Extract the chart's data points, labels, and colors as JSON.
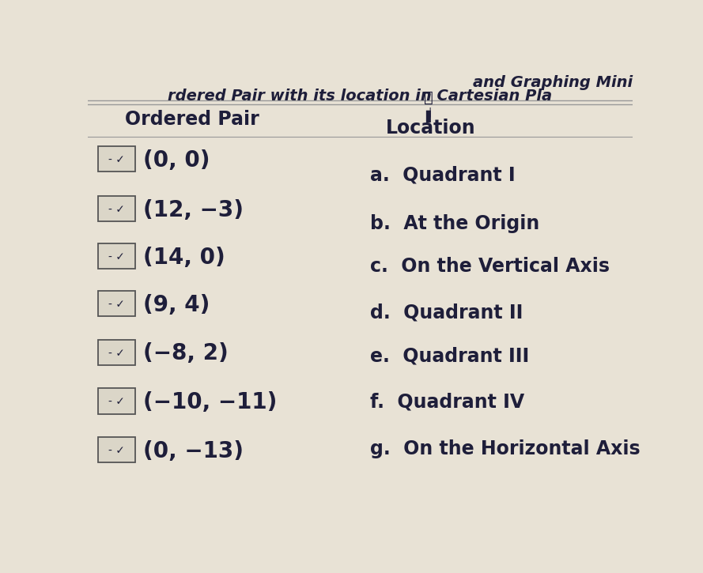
{
  "title_line1": "and Graphing Mini",
  "title_line2": "rdered Pair with its location in Cartesian Pla",
  "col1_header": "Ordered Pair",
  "col2_header": "Location",
  "ordered_pairs": [
    "(0, 0)",
    "(12, −3)",
    "(14, 0)",
    "(9, 4)",
    "(−8, 2)",
    "(−10, −11)",
    "(0, −13)"
  ],
  "locations": [
    "a.  Quadrant I",
    "b.  At the Origin",
    "c.  On the Vertical Axis",
    "d.  Quadrant II",
    "e.  Quadrant III",
    "f.  Quadrant IV",
    "g.  On the Horizontal Axis"
  ],
  "bg_color": "#e8e2d5",
  "text_color": "#1e1e3a",
  "box_border_color": "#555555",
  "box_face_color": "#dbd6c8",
  "line_color": "#999999",
  "font_size_title": 14,
  "font_size_header": 17,
  "font_size_pairs": 20,
  "font_size_locations": 17
}
